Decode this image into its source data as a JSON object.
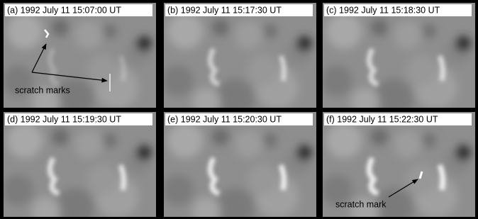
{
  "panels": [
    {
      "label": "(a) 1992 July 11 15:07:00 UT",
      "annotation": "scratch marks"
    },
    {
      "label": "(b) 1992 July 11 15:17:30 UT"
    },
    {
      "label": "(c) 1992 July 11 15:18:30 UT"
    },
    {
      "label": "(d) 1992 July 11 15:19:30 UT"
    },
    {
      "label": "(e) 1992 July 11 15:20:30 UT"
    },
    {
      "label": "(f) 1992 July 11 15:22:30 UT",
      "annotation": "scratch mark"
    }
  ]
}
